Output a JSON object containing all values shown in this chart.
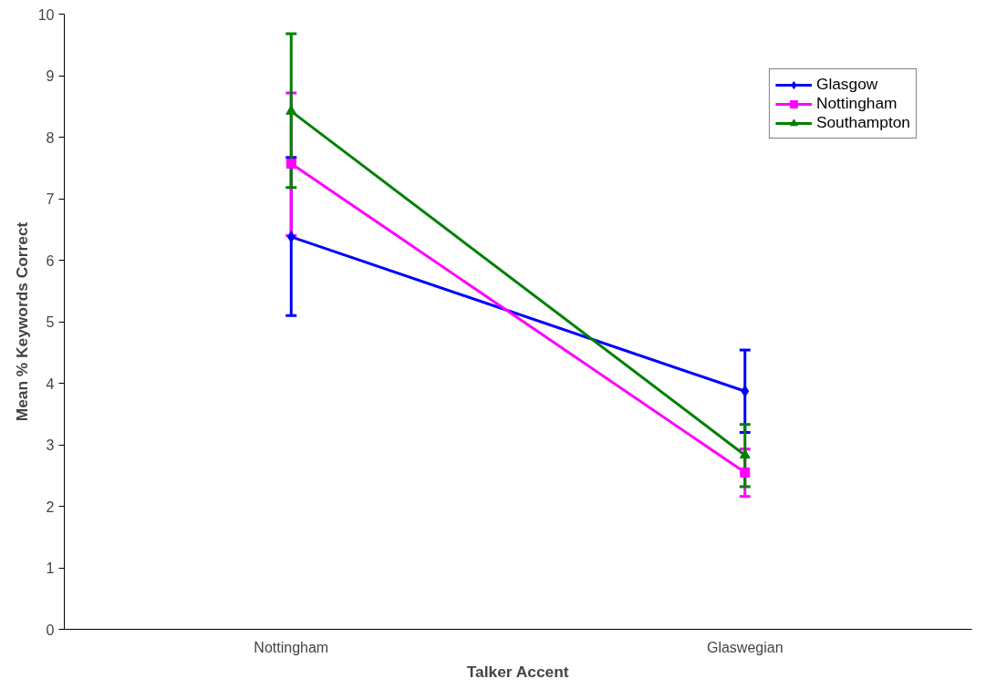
{
  "chart_data": {
    "type": "line",
    "xlabel": "Talker Accent",
    "ylabel": "Mean % Keywords Correct",
    "categories": [
      "Nottingham",
      "Glaswegian"
    ],
    "series": [
      {
        "name": "Glasgow",
        "color": "#0000ff",
        "marker": "diamond",
        "values": [
          6.38,
          3.87
        ],
        "errors": [
          [
            5.1,
            7.67
          ],
          [
            3.2,
            4.54
          ]
        ]
      },
      {
        "name": "Nottingham",
        "color": "#ff00ff",
        "marker": "square",
        "values": [
          7.57,
          2.55
        ],
        "errors": [
          [
            6.4,
            8.72
          ],
          [
            2.16,
            2.93
          ]
        ]
      },
      {
        "name": "Southampton",
        "color": "#008000",
        "marker": "triangle",
        "values": [
          8.42,
          2.83
        ],
        "errors": [
          [
            7.18,
            9.68
          ],
          [
            2.32,
            3.33
          ]
        ]
      }
    ],
    "ylim": [
      0,
      10
    ],
    "yticks": [
      0,
      1,
      2,
      3,
      4,
      5,
      6,
      7,
      8,
      9,
      10
    ],
    "grid": false,
    "legend": "top right"
  }
}
